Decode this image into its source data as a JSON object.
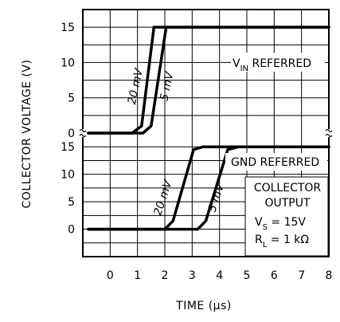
{
  "chart_data": {
    "type": "line",
    "xlabel": "TIME (μs)",
    "ylabel": "COLLECTOR VOLTAGE (V)",
    "xlim": [
      -1,
      8
    ],
    "x_ticks": [
      "0",
      "1",
      "2",
      "3",
      "4",
      "5",
      "6",
      "7",
      "8"
    ],
    "grid": true,
    "panels": [
      {
        "label": "V_IN REFERRED",
        "label_parts": {
          "main": "V",
          "sub": "IN",
          "rest": " REFERRED"
        },
        "ylim": [
          0,
          17.5
        ],
        "y_ticks": [
          0,
          5,
          10,
          15
        ],
        "series": [
          {
            "name": "20 mV",
            "x": [
              -0.8,
              0.8,
              1.15,
              1.6,
              3.0,
              8.0
            ],
            "y": [
              0,
              0,
              1,
              15,
              15,
              15
            ]
          },
          {
            "name": "5 mV",
            "x": [
              -0.8,
              1.2,
              1.5,
              2.05,
              3.0,
              8.0
            ],
            "y": [
              0,
              0,
              1,
              15,
              15,
              15
            ]
          }
        ]
      },
      {
        "label": "GND REFERRED",
        "ylim": [
          -5,
          17.5
        ],
        "y_ticks": [
          0,
          5,
          10,
          15
        ],
        "series": [
          {
            "name": "20 mV",
            "x": [
              -0.8,
              1.8,
              2.0,
              2.3,
              3.05,
              3.4,
              8.0
            ],
            "y": [
              0,
              0,
              0,
              1.5,
              14.5,
              15,
              15
            ]
          },
          {
            "name": "5 mV",
            "x": [
              -0.8,
              3.0,
              3.2,
              3.5,
              4.3,
              4.7,
              8.0
            ],
            "y": [
              0,
              0,
              0,
              1.5,
              14.5,
              15,
              15
            ]
          }
        ]
      }
    ],
    "annotation": {
      "lines": [
        "COLLECTOR",
        "OUTPUT"
      ],
      "vs": {
        "main": "V",
        "sub": "S",
        "rest": " = 15V"
      },
      "rl": {
        "main": "R",
        "sub": "L",
        "rest": " = 1 kΩ"
      }
    }
  }
}
